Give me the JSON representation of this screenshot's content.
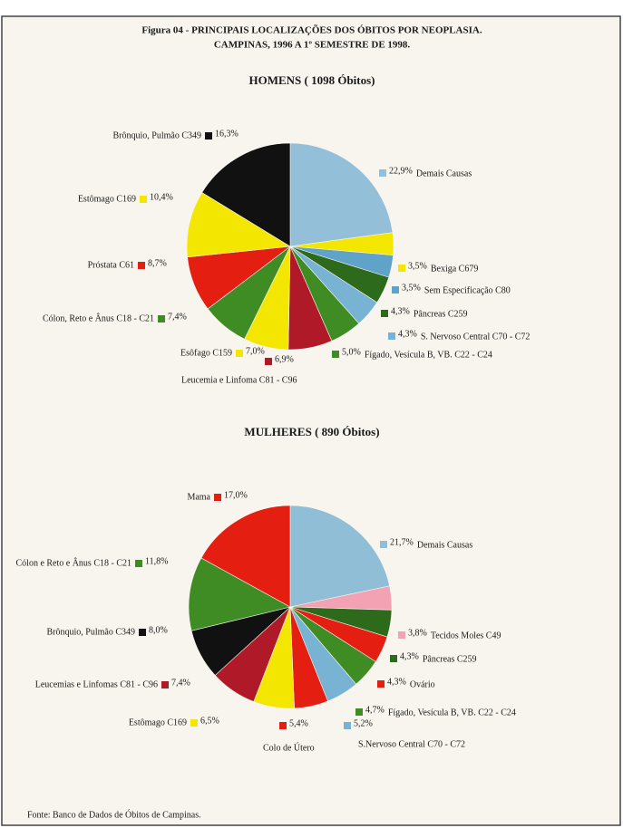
{
  "title": [
    "Figura 04 - PRINCIPAIS LOCALIZAÇÕES DOS ÓBITOS POR NEOPLASIA.",
    "CAMPINAS, 1996 A 1º SEMESTRE DE 1998."
  ],
  "source": "Fonte: Banco de Dados de Óbitos de Campinas.",
  "chart_data": [
    {
      "type": "pie",
      "title": "HOMENS ( 1098 Óbitos)",
      "categories": [
        "Demais Causas",
        "Bexiga C679",
        "Sem Especificação C80",
        "Pâncreas C259",
        "S. Nervoso Central C70 - C72",
        "Fígado, Vesícula B, VB. C22 - C24",
        "Leucemia e Linfoma C81 - C96",
        "Esôfago C159",
        "Cólon, Reto e Ânus C18 - C21",
        "Próstata C61",
        "Estômago C169",
        "Brônquio, Pulmão C349"
      ],
      "values": [
        22.9,
        3.5,
        3.5,
        4.3,
        4.3,
        5.0,
        6.9,
        7.0,
        7.4,
        8.7,
        10.4,
        16.3
      ],
      "value_labels": [
        "22,9%",
        "3,5%",
        "3,5%",
        "4,3%",
        "4,3%",
        "5,0%",
        "6,9%",
        "7,0%",
        "7,4%",
        "8,7%",
        "10,4%",
        "16,3%"
      ],
      "colors": [
        "#93c0d8",
        "#f3e600",
        "#5fa3c8",
        "#2e6a1c",
        "#79b3d4",
        "#3f8b24",
        "#b01a28",
        "#f3e600",
        "#3f8b24",
        "#e51e12",
        "#f3e600",
        "#111111"
      ]
    },
    {
      "type": "pie",
      "title": "MULHERES ( 890 Óbitos)",
      "categories": [
        "Demais Causas",
        "Tecidos Moles C49",
        "Pâncreas C259",
        "Ovário",
        "Fígado, Vesícula B, VB. C22 - C24",
        "S.Nervoso Central C70 - C72",
        "Colo de Útero",
        "Estômago C169",
        "Leucemias e Linfomas C81 - C96",
        "Brônquio, Pulmão C349",
        "Cólon e Reto e Ânus C18 - C21",
        "Mama"
      ],
      "values": [
        21.7,
        3.8,
        4.3,
        4.3,
        4.7,
        5.2,
        5.4,
        6.5,
        7.4,
        8.0,
        11.8,
        17.0
      ],
      "value_labels": [
        "21,7%",
        "3,8%",
        "4,3%",
        "4,3%",
        "4,7%",
        "5,2%",
        "5,4%",
        "6,5%",
        "7,4%",
        "8,0%",
        "11,8%",
        "17,0%"
      ],
      "colors": [
        "#8fbed6",
        "#f2a2b2",
        "#2e6a1c",
        "#e51e12",
        "#3f8b24",
        "#79b3d4",
        "#e51e12",
        "#f3e600",
        "#b01a28",
        "#111111",
        "#3f8b24",
        "#e51e12"
      ]
    }
  ]
}
